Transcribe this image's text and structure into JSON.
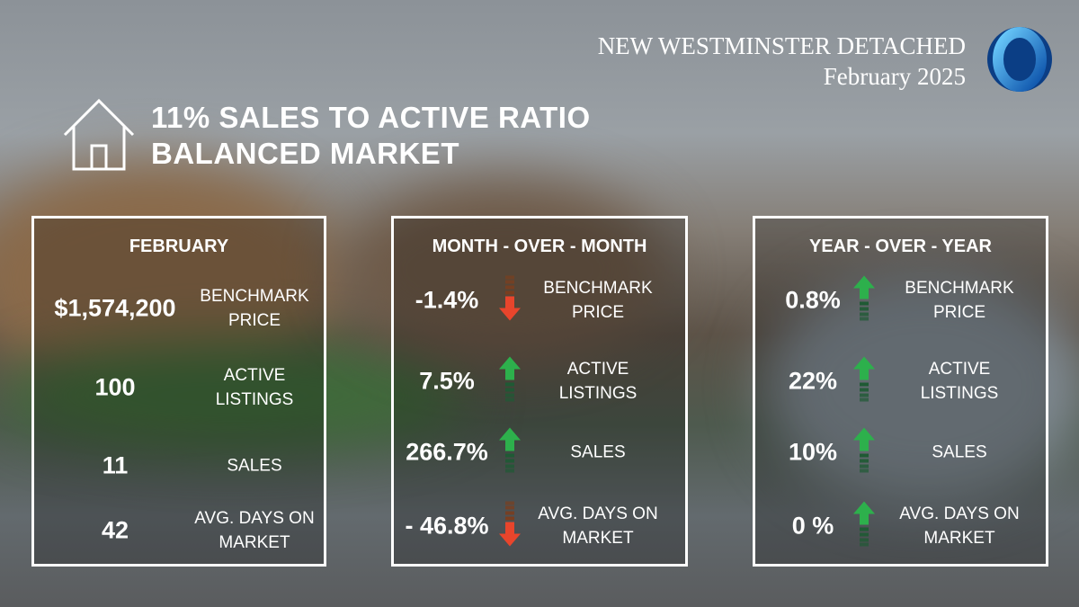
{
  "header": {
    "title": "NEW WESTMINSTER DETACHED",
    "subtitle": "February 2025"
  },
  "headline": {
    "line1": "11% SALES TO ACTIVE RATIO",
    "line2": "BALANCED MARKET"
  },
  "panels": [
    {
      "heading": "FEBRUARY",
      "rows": [
        {
          "value": "$1,574,200",
          "label": "BENCHMARK PRICE"
        },
        {
          "value": "100",
          "label": "ACTIVE LISTINGS"
        },
        {
          "value": "11",
          "label": "SALES"
        },
        {
          "value": "42",
          "label": "AVG. DAYS ON MARKET"
        }
      ]
    },
    {
      "heading": "MONTH - OVER - MONTH",
      "rows": [
        {
          "value": "-1.4%",
          "label": "BENCHMARK PRICE"
        },
        {
          "value": "7.5%",
          "label": "ACTIVE LISTINGS"
        },
        {
          "value": "266.7%",
          "label": "SALES"
        },
        {
          "value": "- 46.8%",
          "label": "AVG. DAYS ON MARKET"
        }
      ]
    },
    {
      "heading": "YEAR - OVER - YEAR",
      "rows": [
        {
          "value": "0.8%",
          "label": "BENCHMARK PRICE"
        },
        {
          "value": "22%",
          "label": "ACTIVE LISTINGS"
        },
        {
          "value": "10%",
          "label": "SALES"
        },
        {
          "value": "0 %",
          "label": "AVG. DAYS ON MARKET"
        }
      ]
    }
  ]
}
